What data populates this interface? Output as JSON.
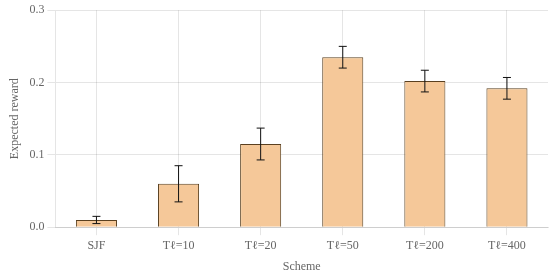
{
  "chart_data": {
    "type": "bar",
    "categories": [
      "SJF",
      "Tℓ=10",
      "Tℓ=20",
      "Tℓ=50",
      "Tℓ=200",
      "Tℓ=400"
    ],
    "values": [
      0.01,
      0.06,
      0.115,
      0.235,
      0.202,
      0.192
    ],
    "errors": [
      0.005,
      0.025,
      0.022,
      0.015,
      0.015,
      0.015
    ],
    "color": "#F5C899",
    "xlabel": "Scheme",
    "ylabel": "Expected reward",
    "ylim": [
      0,
      0.3
    ],
    "yticks": [
      {
        "value": 0.0,
        "label": "0.0"
      },
      0.1,
      0.2,
      0.3
    ],
    "grid": true
  }
}
